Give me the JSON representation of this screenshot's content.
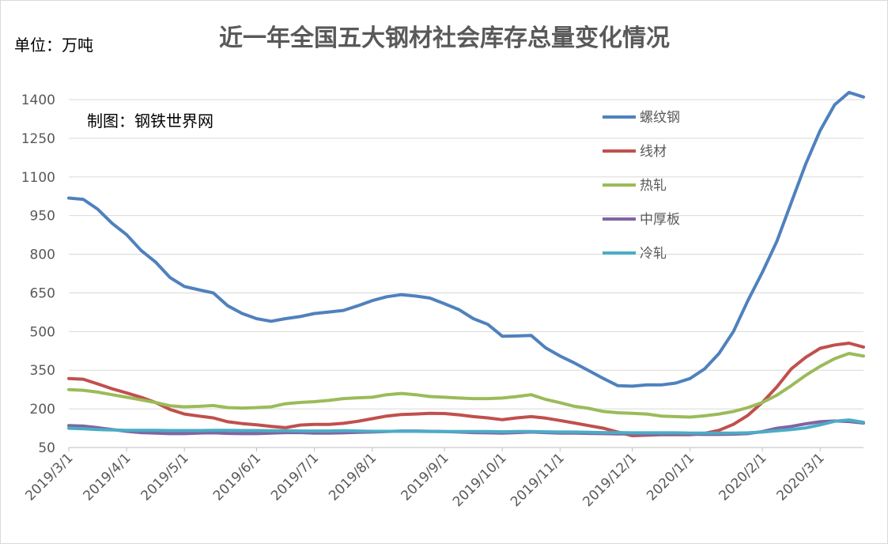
{
  "chart_data": {
    "type": "line",
    "title": "近一年全国五大钢材社会库存总量变化情况",
    "unit_label": "单位：万吨",
    "credit": "制图：钢铁世界网",
    "ylim": [
      50,
      1400
    ],
    "yticks": [
      50,
      200,
      350,
      500,
      650,
      800,
      950,
      1100,
      1250,
      1400
    ],
    "x": [
      "2019/3/1",
      "2019/3/8",
      "2019/3/15",
      "2019/3/22",
      "2019/3/29",
      "2019/4/5",
      "2019/4/12",
      "2019/4/19",
      "2019/4/26",
      "2019/5/3",
      "2019/5/10",
      "2019/5/17",
      "2019/5/24",
      "2019/5/31",
      "2019/6/7",
      "2019/6/14",
      "2019/6/21",
      "2019/6/28",
      "2019/7/5",
      "2019/7/12",
      "2019/7/19",
      "2019/7/26",
      "2019/8/2",
      "2019/8/9",
      "2019/8/16",
      "2019/8/23",
      "2019/8/30",
      "2019/9/6",
      "2019/9/13",
      "2019/9/20",
      "2019/9/27",
      "2019/10/4",
      "2019/10/11",
      "2019/10/18",
      "2019/10/25",
      "2019/11/1",
      "2019/11/8",
      "2019/11/15",
      "2019/11/22",
      "2019/11/29",
      "2019/12/6",
      "2019/12/13",
      "2019/12/20",
      "2019/12/27",
      "2020/1/3",
      "2020/1/10",
      "2020/1/17",
      "2020/1/24",
      "2020/1/31",
      "2020/2/7",
      "2020/2/14",
      "2020/2/21",
      "2020/2/28",
      "2020/3/6",
      "2020/3/13",
      "2020/3/20"
    ],
    "xtick_labels": [
      "2019/3/1",
      "2019/4/1",
      "2019/5/1",
      "2019/6/1",
      "2019/7/1",
      "2019/8/1",
      "2019/9/1",
      "2019/10/1",
      "2019/11/1",
      "2019/12/1",
      "2020/1/1",
      "2020/2/1",
      "2020/3/1"
    ],
    "xtick_positions": [
      "2019/3/1",
      "2019/3/29",
      "2019/4/26",
      "2019/5/31",
      "2019/6/28",
      "2019/7/26",
      "2019/8/30",
      "2019/9/27",
      "2019/10/25",
      "2019/11/29",
      "2019/12/27",
      "2020/1/31",
      "2020/2/28"
    ],
    "grid": true,
    "legend_position": "top-right",
    "series": [
      {
        "name": "螺纹钢",
        "color": "#4f81bd",
        "values": [
          1018,
          1013,
          975,
          920,
          876,
          815,
          770,
          710,
          675,
          662,
          650,
          600,
          570,
          550,
          540,
          550,
          558,
          570,
          576,
          582,
          600,
          620,
          635,
          643,
          638,
          630,
          608,
          585,
          550,
          528,
          482,
          483,
          485,
          437,
          405,
          378,
          348,
          318,
          290,
          288,
          293,
          293,
          300,
          318,
          355,
          415,
          500,
          620,
          730,
          850,
          1000,
          1150,
          1280,
          1380,
          1428,
          1410
        ]
      },
      {
        "name": "线材",
        "color": "#c0504d",
        "values": [
          318,
          315,
          297,
          278,
          262,
          245,
          225,
          198,
          180,
          172,
          165,
          150,
          143,
          138,
          132,
          127,
          137,
          140,
          140,
          144,
          152,
          162,
          172,
          178,
          180,
          183,
          182,
          177,
          170,
          165,
          158,
          165,
          170,
          164,
          155,
          145,
          135,
          125,
          110,
          96,
          98,
          100,
          100,
          100,
          105,
          117,
          140,
          175,
          225,
          285,
          355,
          400,
          435,
          448,
          455,
          440
        ]
      },
      {
        "name": "热轧",
        "color": "#9bbb59",
        "values": [
          275,
          272,
          265,
          255,
          245,
          235,
          225,
          212,
          208,
          210,
          213,
          205,
          203,
          205,
          208,
          220,
          225,
          228,
          233,
          240,
          243,
          245,
          255,
          260,
          255,
          248,
          245,
          242,
          240,
          240,
          242,
          248,
          255,
          237,
          224,
          210,
          202,
          190,
          185,
          183,
          180,
          172,
          170,
          168,
          173,
          180,
          190,
          205,
          225,
          253,
          290,
          330,
          365,
          395,
          415,
          405
        ]
      },
      {
        "name": "中厚板",
        "color": "#8064a2",
        "values": [
          135,
          133,
          127,
          120,
          113,
          108,
          106,
          104,
          104,
          106,
          107,
          105,
          104,
          104,
          106,
          108,
          108,
          106,
          106,
          107,
          109,
          110,
          112,
          114,
          114,
          113,
          112,
          110,
          108,
          107,
          106,
          108,
          110,
          108,
          106,
          106,
          105,
          104,
          103,
          103,
          102,
          101,
          102,
          102,
          101,
          101,
          102,
          104,
          112,
          125,
          132,
          142,
          150,
          153,
          151,
          145
        ]
      },
      {
        "name": "冷轧",
        "color": "#4bacc6",
        "values": [
          125,
          123,
          120,
          118,
          117,
          117,
          117,
          116,
          116,
          116,
          117,
          117,
          116,
          116,
          115,
          115,
          114,
          114,
          114,
          115,
          114,
          113,
          113,
          113,
          113,
          112,
          112,
          112,
          112,
          112,
          111,
          112,
          112,
          111,
          110,
          110,
          109,
          108,
          108,
          107,
          107,
          107,
          107,
          106,
          106,
          106,
          106,
          107,
          110,
          115,
          120,
          126,
          138,
          152,
          157,
          148
        ]
      }
    ]
  }
}
